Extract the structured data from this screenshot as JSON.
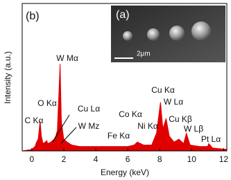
{
  "chart_data": {
    "type": "area",
    "panel_label": "(b)",
    "x_label": "Energy  (keV)",
    "y_label": "Intensity  (a.u.)",
    "x": [
      -0.6,
      0.0,
      0.2,
      0.3,
      0.4,
      0.52,
      0.6,
      0.7,
      0.85,
      0.93,
      1.0,
      1.2,
      1.4,
      1.5,
      1.6,
      1.7,
      1.77,
      1.85,
      2.0,
      2.2,
      2.5,
      3,
      4,
      5,
      6,
      6.4,
      6.6,
      7,
      7.5,
      7.8,
      8.05,
      8.2,
      8.4,
      8.6,
      8.9,
      9.2,
      9.5,
      9.67,
      9.9,
      10.5,
      11,
      11.07,
      11.3,
      12.2
    ],
    "series": [
      {
        "color": "#e00000",
        "values": [
          0,
          1,
          3,
          6,
          8,
          20,
          10,
          5,
          6,
          7,
          5,
          6,
          8,
          10,
          14,
          40,
          59,
          20,
          8,
          6,
          4,
          3,
          3,
          3,
          3,
          4,
          6,
          4,
          4,
          12,
          33,
          15,
          22,
          10,
          6,
          8,
          5,
          12,
          4,
          3,
          3,
          5,
          2,
          1
        ]
      }
    ],
    "xlim": [
      -0.6,
      12.2
    ],
    "xticks": [
      0,
      2,
      4,
      6,
      8,
      10,
      12
    ],
    "ylim": [
      0,
      100
    ],
    "annotations": [
      "W Mα",
      "O Kα",
      "Cu Lα",
      "C Kα",
      "W Mz",
      "Co Kα",
      "Ni Kα",
      "Fe Kα",
      "Cu Kα",
      "W Lα",
      "Cu Kβ",
      "W Lβ",
      "Pt Lα"
    ],
    "inset": {
      "label": "(a)",
      "scale_bar": "2μm"
    }
  }
}
